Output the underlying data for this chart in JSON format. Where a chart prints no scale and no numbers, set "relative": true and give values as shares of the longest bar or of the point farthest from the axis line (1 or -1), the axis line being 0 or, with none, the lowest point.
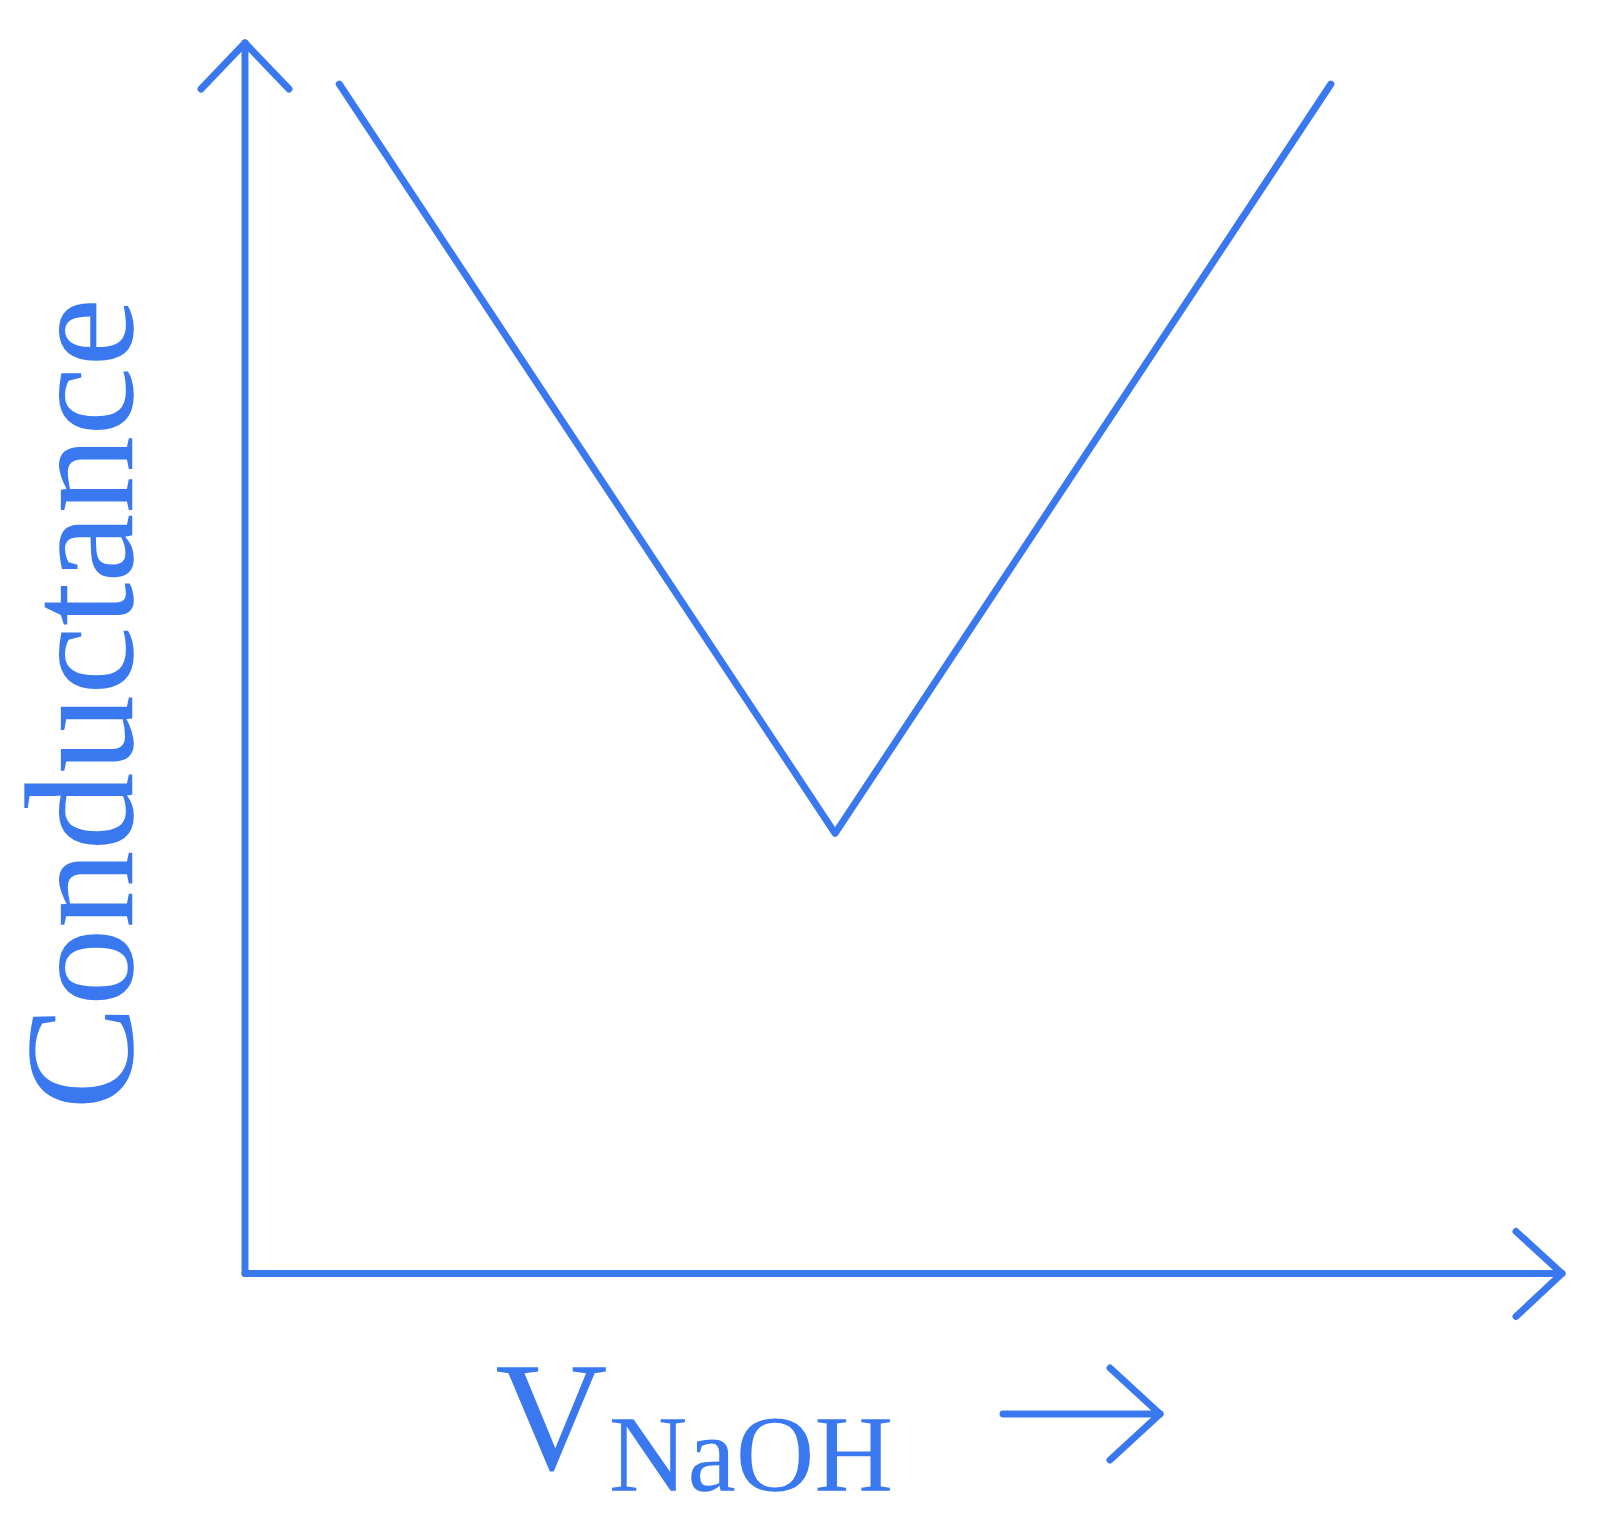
{
  "chart_data": {
    "type": "line",
    "xlabel": "V$_{NaOH}$",
    "ylabel": "Conductance",
    "categories": [
      null,
      null,
      null
    ],
    "series": [
      {
        "color": "#3a78f0",
        "values": [
          1,
          0.37,
          1
        ]
      }
    ],
    "relative": true
  }
}
